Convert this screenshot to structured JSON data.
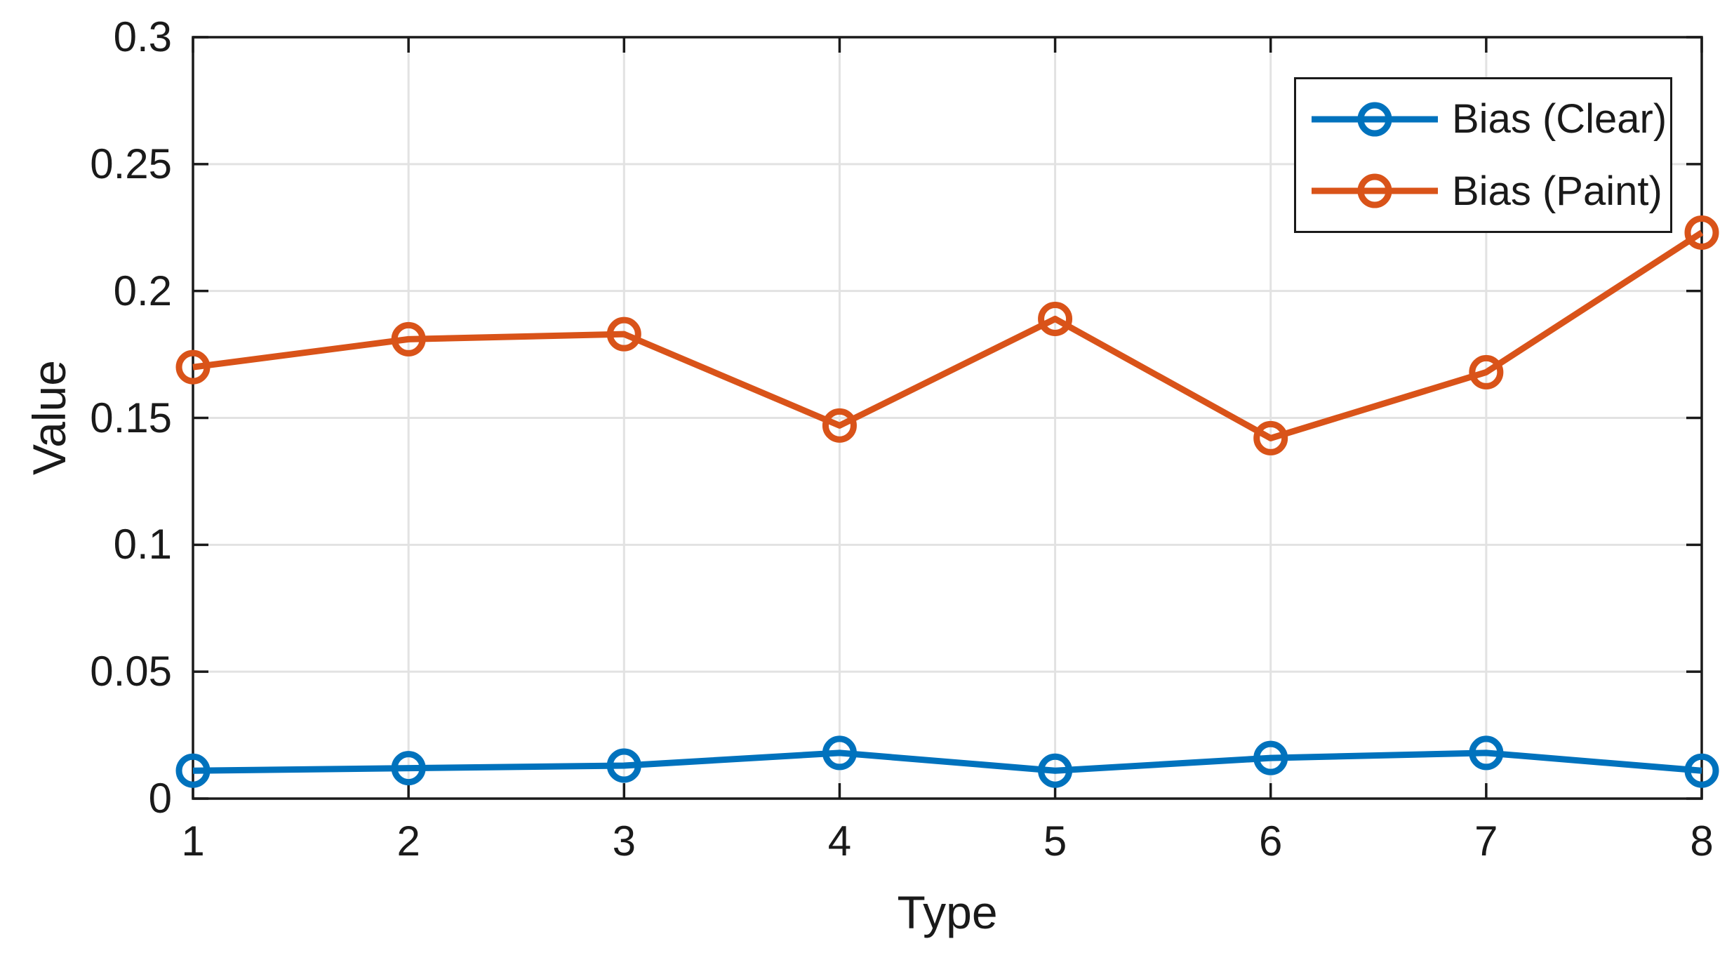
{
  "figure": {
    "background": "#ffffff"
  },
  "axes": {
    "xlabel": "Type",
    "ylabel": "Value",
    "axis_color": "#1a1a1a",
    "grid_color": "#e2e2e2"
  },
  "legend": {
    "position": "top-right",
    "entries": [
      {
        "label": "Bias (Clear)",
        "color": "#0072BD",
        "marker": "circle-icon"
      },
      {
        "label": "Bias (Paint)",
        "color": "#D95319",
        "marker": "circle-icon"
      }
    ]
  },
  "chart_data": {
    "type": "line",
    "title": "",
    "xlabel": "Type",
    "ylabel": "Value",
    "x": [
      1,
      2,
      3,
      4,
      5,
      6,
      7,
      8
    ],
    "series": [
      {
        "name": "Bias (Clear)",
        "color": "#0072BD",
        "marker": "circle",
        "values": [
          0.011,
          0.012,
          0.013,
          0.018,
          0.011,
          0.016,
          0.018,
          0.011
        ]
      },
      {
        "name": "Bias (Paint)",
        "color": "#D95319",
        "marker": "circle",
        "values": [
          0.17,
          0.181,
          0.183,
          0.147,
          0.189,
          0.142,
          0.168,
          0.223
        ]
      }
    ],
    "xlim": [
      1,
      8
    ],
    "ylim": [
      0,
      0.3
    ],
    "x_ticks": [
      "1",
      "2",
      "3",
      "4",
      "5",
      "6",
      "7",
      "8"
    ],
    "x_tick_values": [
      1,
      2,
      3,
      4,
      5,
      6,
      7,
      8
    ],
    "y_ticks": [
      "0",
      "0.05",
      "0.1",
      "0.15",
      "0.2",
      "0.25",
      "0.3"
    ],
    "y_tick_values": [
      0,
      0.05,
      0.1,
      0.15,
      0.2,
      0.25,
      0.3
    ],
    "grid": true,
    "legend_position": "top-right"
  }
}
